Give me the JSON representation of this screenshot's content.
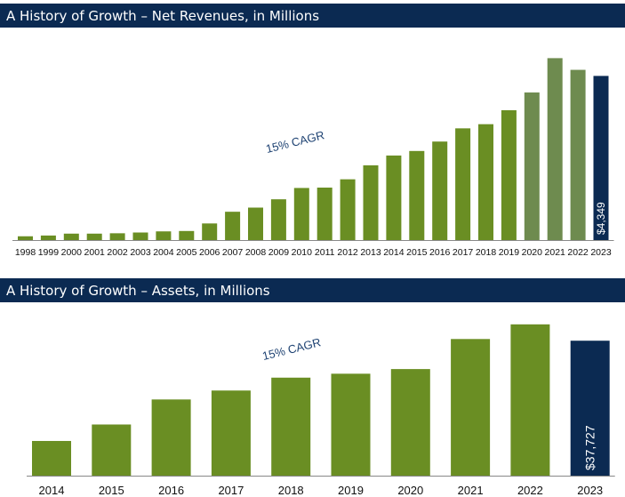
{
  "colors": {
    "banner": "#0b2a52",
    "bar": "#6a8e23",
    "bar_projected": "#6e8b4f",
    "bar_current": "#0b2a52",
    "cagr_text": "#1f4373"
  },
  "chart_data": [
    {
      "type": "bar",
      "title": "A History of Growth – Net Revenues, in Millions",
      "annotation": "15% CAGR",
      "categories": [
        "1998",
        "1999",
        "2000",
        "2001",
        "2002",
        "2003",
        "2004",
        "2005",
        "2006",
        "2007",
        "2008",
        "2009",
        "2010",
        "2011",
        "2012",
        "2013",
        "2014",
        "2015",
        "2016",
        "2017",
        "2018",
        "2019",
        "2020",
        "2021",
        "2022",
        "2023"
      ],
      "values": [
        100,
        120,
        170,
        170,
        180,
        200,
        230,
        240,
        440,
        750,
        860,
        1080,
        1380,
        1390,
        1610,
        1980,
        2240,
        2360,
        2610,
        2960,
        3070,
        3440,
        3910,
        4820,
        4510,
        4349
      ],
      "data_label": "$4,349",
      "data_label_index": 25,
      "ylim": [
        0,
        4900
      ],
      "grid": false,
      "xlabel": "",
      "ylabel": ""
    },
    {
      "type": "bar",
      "title": "A History of Growth – Assets, in Millions",
      "annotation": "15% CAGR",
      "categories": [
        "2014",
        "2015",
        "2016",
        "2017",
        "2018",
        "2019",
        "2020",
        "2021",
        "2022",
        "2023"
      ],
      "values": [
        9700,
        14300,
        21300,
        23800,
        27400,
        28500,
        29800,
        38200,
        42300,
        37727
      ],
      "data_label": "$37,727",
      "data_label_index": 9,
      "ylim": [
        0,
        43000
      ],
      "grid": false,
      "xlabel": "",
      "ylabel": ""
    }
  ]
}
